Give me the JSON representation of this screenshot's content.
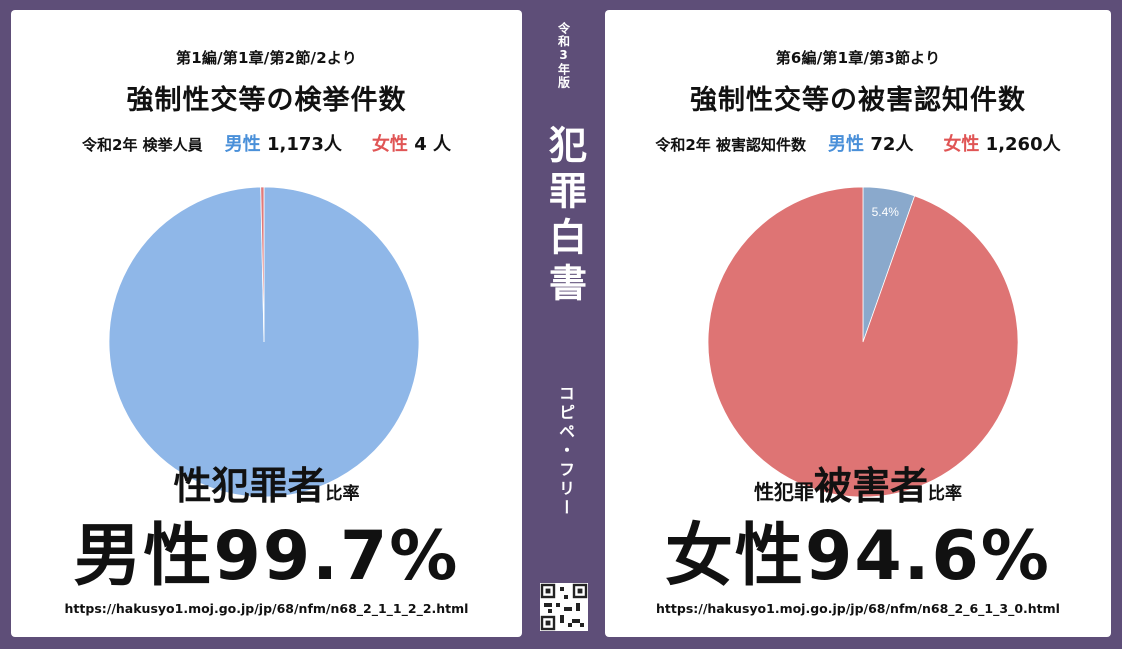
{
  "left": {
    "subheading": "第1編/第1章/第2節/2より",
    "title": "強制性交等の検挙件数",
    "stats": {
      "prefix": "令和2年 検挙人員",
      "male_label": "男性",
      "male_value": "1,173人",
      "female_label": "女性",
      "female_value": "4 人"
    },
    "ratio_label_main": "性犯罪者",
    "ratio_label_suffix": "比率",
    "percentage": "男性99.7%",
    "url": "https://hakusyo1.moj.go.jp/jp/68/nfm/n68_2_1_1_2_2.html"
  },
  "right": {
    "subheading": "第6編/第1章/第3節より",
    "title": "強制性交等の被害認知件数",
    "stats": {
      "prefix": "令和2年 被害認知件数",
      "male_label": "男性",
      "male_value": "72人",
      "female_label": "女性",
      "female_value": "1,260人"
    },
    "ratio_label_prefix": "性犯罪",
    "ratio_label_main": "被害者",
    "ratio_label_suffix": "比率",
    "percentage": "女性94.6%",
    "url": "https://hakusyo1.moj.go.jp/jp/68/nfm/n68_2_6_1_3_0.html"
  },
  "spine": {
    "edition": "令和3年版",
    "title": "犯罪白書",
    "note": "コピペ・フリー"
  },
  "colors": {
    "background": "#5e4e78",
    "male_slice_left": "#8fb7e8",
    "female_slice_left": "#e07a7a",
    "male_slice_right": "#8aa9cc",
    "female_slice_right": "#de7474",
    "male_text": "#4a90d9",
    "female_text": "#e05555"
  },
  "chart_data": [
    {
      "type": "pie",
      "categories": [
        "男性",
        "女性"
      ],
      "values": [
        1173,
        4
      ],
      "data_labels": [
        "",
        ""
      ]
    },
    {
      "type": "pie",
      "categories": [
        "男性",
        "女性"
      ],
      "values": [
        72,
        1260
      ],
      "data_labels": [
        "5.4%",
        ""
      ]
    }
  ]
}
